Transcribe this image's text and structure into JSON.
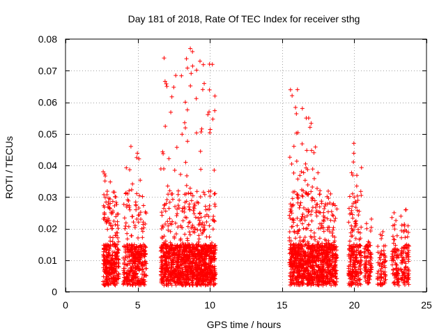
{
  "chart_data": {
    "type": "scatter",
    "title": "Day 181 of 2018, Rate Of TEC Index for receiver sthg",
    "xlabel": "GPS time / hours",
    "ylabel": "ROTI / TECUs",
    "xlim": [
      0,
      25
    ],
    "ylim": [
      0,
      0.08
    ],
    "x_ticks": [
      0,
      5,
      10,
      15,
      20,
      25
    ],
    "y_ticks": [
      0,
      0.01,
      0.02,
      0.03,
      0.04,
      0.05,
      0.06,
      0.07,
      0.08
    ],
    "x_tick_labels": [
      "0",
      "5",
      "10",
      "15",
      "20",
      "25"
    ],
    "y_tick_labels": [
      "0",
      "0.01",
      "0.02",
      "0.03",
      "0.04",
      "0.05",
      "0.06",
      "0.07",
      "0.08"
    ],
    "grid": true,
    "marker": "+",
    "color": "#ff0000",
    "clusters": [
      {
        "x_start": 2.6,
        "x_end": 3.7,
        "y_max": 0.038,
        "count": 320
      },
      {
        "x_start": 4.0,
        "x_end": 5.6,
        "y_max": 0.046,
        "count": 380
      },
      {
        "x_start": 6.6,
        "x_end": 8.3,
        "y_max": 0.074,
        "count": 520
      },
      {
        "x_start": 8.3,
        "x_end": 9.2,
        "y_max": 0.077,
        "count": 320
      },
      {
        "x_start": 9.2,
        "x_end": 10.4,
        "y_max": 0.073,
        "count": 420
      },
      {
        "x_start": 15.5,
        "x_end": 16.8,
        "y_max": 0.064,
        "count": 420
      },
      {
        "x_start": 16.8,
        "x_end": 17.6,
        "y_max": 0.055,
        "count": 260
      },
      {
        "x_start": 17.6,
        "x_end": 18.8,
        "y_max": 0.032,
        "count": 360
      },
      {
        "x_start": 19.6,
        "x_end": 20.5,
        "y_max": 0.047,
        "count": 230
      },
      {
        "x_start": 20.7,
        "x_end": 21.2,
        "y_max": 0.023,
        "count": 90
      },
      {
        "x_start": 21.6,
        "x_end": 22.2,
        "y_max": 0.019,
        "count": 70
      },
      {
        "x_start": 22.6,
        "x_end": 23.1,
        "y_max": 0.025,
        "count": 80
      },
      {
        "x_start": 23.2,
        "x_end": 23.8,
        "y_max": 0.026,
        "count": 100
      }
    ]
  }
}
